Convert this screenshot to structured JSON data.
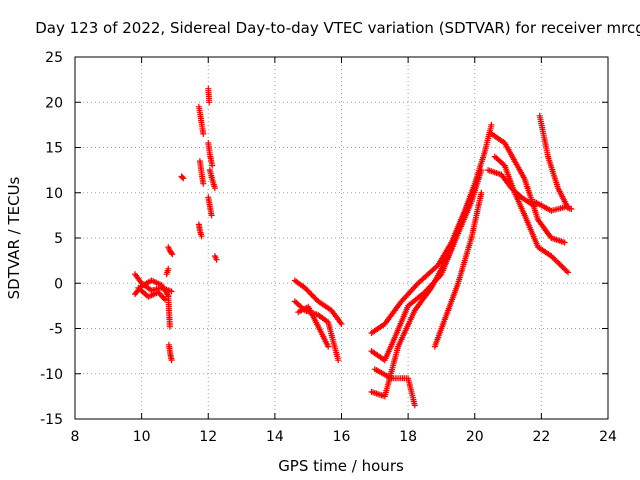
{
  "chart_data": {
    "type": "scatter",
    "title": "Day 123 of 2022, Sidereal Day-to-day VTEC variation (SDTVAR) for receiver mrcg",
    "xlabel": "GPS time / hours",
    "ylabel": "SDTVAR / TECUs",
    "xlim": [
      8,
      24
    ],
    "ylim": [
      -15,
      25
    ],
    "xticks": [
      "8",
      "10",
      "12",
      "14",
      "16",
      "18",
      "20",
      "22",
      "24"
    ],
    "yticks": [
      "25",
      "20",
      "15",
      "10",
      "5",
      "0",
      "-5",
      "-10",
      "-15"
    ],
    "grid": true,
    "marker": "plus",
    "marker_color": "#ff0000",
    "segments": [
      {
        "name": "cluster-10h-a",
        "points": [
          [
            9.8,
            1.0
          ],
          [
            10.0,
            0.0
          ],
          [
            10.3,
            -0.8
          ],
          [
            10.6,
            -0.5
          ],
          [
            10.9,
            -0.9
          ]
        ]
      },
      {
        "name": "cluster-10h-b",
        "points": [
          [
            9.8,
            -1.2
          ],
          [
            10.0,
            -0.3
          ],
          [
            10.3,
            0.3
          ],
          [
            10.6,
            -0.2
          ],
          [
            10.8,
            -1.4
          ]
        ]
      },
      {
        "name": "cluster-10h-c",
        "points": [
          [
            9.9,
            -0.5
          ],
          [
            10.2,
            -1.5
          ],
          [
            10.5,
            -1.0
          ],
          [
            10.7,
            -1.8
          ]
        ]
      },
      {
        "name": "arc-10.8-a",
        "points": [
          [
            10.8,
            -1.5
          ],
          [
            10.82,
            -3.0
          ],
          [
            10.85,
            -4.8
          ]
        ]
      },
      {
        "name": "arc-10.8-b",
        "points": [
          [
            10.82,
            -6.8
          ],
          [
            10.86,
            -7.8
          ],
          [
            10.9,
            -8.5
          ]
        ]
      },
      {
        "name": "arc-10.8-c",
        "points": [
          [
            10.8,
            4.0
          ],
          [
            10.85,
            3.6
          ],
          [
            10.92,
            3.2
          ]
        ]
      },
      {
        "name": "arc-10.8-d",
        "points": [
          [
            10.75,
            1.0
          ],
          [
            10.8,
            1.6
          ]
        ]
      },
      {
        "name": "arc-11.2",
        "points": [
          [
            11.2,
            11.8
          ],
          [
            11.25,
            11.6
          ]
        ]
      },
      {
        "name": "arc-11.7-a",
        "points": [
          [
            11.72,
            19.5
          ],
          [
            11.78,
            18.2
          ],
          [
            11.85,
            16.5
          ]
        ]
      },
      {
        "name": "arc-11.7-b",
        "points": [
          [
            11.75,
            13.5
          ],
          [
            11.8,
            12.2
          ],
          [
            11.85,
            11.0
          ]
        ]
      },
      {
        "name": "arc-11.7-c",
        "points": [
          [
            11.72,
            6.5
          ],
          [
            11.75,
            5.8
          ],
          [
            11.8,
            5.2
          ]
        ]
      },
      {
        "name": "arc-12-a",
        "points": [
          [
            12.0,
            21.5
          ],
          [
            12.03,
            20.0
          ]
        ]
      },
      {
        "name": "arc-12-b",
        "points": [
          [
            12.0,
            15.5
          ],
          [
            12.05,
            14.2
          ],
          [
            12.12,
            13.0
          ]
        ]
      },
      {
        "name": "arc-12-c",
        "points": [
          [
            12.05,
            12.5
          ],
          [
            12.12,
            11.5
          ],
          [
            12.2,
            10.5
          ]
        ]
      },
      {
        "name": "arc-12-d",
        "points": [
          [
            12.0,
            9.5
          ],
          [
            12.05,
            8.5
          ],
          [
            12.1,
            7.5
          ]
        ]
      },
      {
        "name": "arc-12-e",
        "points": [
          [
            12.2,
            3.0
          ],
          [
            12.25,
            2.6
          ]
        ]
      },
      {
        "name": "arc-14.6-a",
        "points": [
          [
            14.6,
            0.3
          ],
          [
            14.9,
            -0.5
          ],
          [
            15.3,
            -2.0
          ],
          [
            15.7,
            -3.0
          ],
          [
            16.0,
            -4.5
          ]
        ]
      },
      {
        "name": "arc-14.6-b",
        "points": [
          [
            14.6,
            -2.0
          ],
          [
            14.9,
            -3.0
          ],
          [
            15.3,
            -3.5
          ],
          [
            15.6,
            -4.3
          ],
          [
            15.9,
            -8.5
          ]
        ]
      },
      {
        "name": "arc-14.6-c",
        "points": [
          [
            14.7,
            -3.2
          ],
          [
            15.0,
            -2.6
          ],
          [
            15.4,
            -5.5
          ],
          [
            15.6,
            -7.0
          ]
        ]
      },
      {
        "name": "rise-17-a",
        "points": [
          [
            16.9,
            -5.5
          ],
          [
            17.3,
            -4.5
          ],
          [
            17.8,
            -2.0
          ],
          [
            18.3,
            0.0
          ],
          [
            18.9,
            2.0
          ],
          [
            19.3,
            4.5
          ],
          [
            19.7,
            8.0
          ],
          [
            20.0,
            11.0
          ],
          [
            20.3,
            14.5
          ],
          [
            20.5,
            17.5
          ]
        ]
      },
      {
        "name": "rise-17-b",
        "points": [
          [
            16.9,
            -7.5
          ],
          [
            17.3,
            -8.5
          ],
          [
            17.6,
            -6.0
          ],
          [
            18.0,
            -2.5
          ],
          [
            18.5,
            -1.0
          ],
          [
            19.0,
            1.0
          ],
          [
            19.5,
            5.5
          ],
          [
            19.9,
            9.0
          ],
          [
            20.2,
            12.5
          ]
        ]
      },
      {
        "name": "rise-17-c",
        "points": [
          [
            16.9,
            -12.0
          ],
          [
            17.3,
            -12.5
          ],
          [
            17.7,
            -7.0
          ],
          [
            18.2,
            -3.0
          ],
          [
            18.7,
            -0.5
          ],
          [
            19.2,
            3.0
          ],
          [
            19.6,
            7.0
          ],
          [
            20.0,
            10.5
          ]
        ]
      },
      {
        "name": "rise-17-d",
        "points": [
          [
            17.0,
            -9.5
          ],
          [
            17.5,
            -10.5
          ],
          [
            18.0,
            -10.5
          ],
          [
            18.2,
            -13.5
          ]
        ]
      },
      {
        "name": "rise-18.8",
        "points": [
          [
            18.8,
            -7.0
          ],
          [
            19.1,
            -4.0
          ],
          [
            19.5,
            0.0
          ],
          [
            19.9,
            5.0
          ],
          [
            20.2,
            10.0
          ]
        ]
      },
      {
        "name": "fall-20.5-a",
        "points": [
          [
            20.5,
            16.5
          ],
          [
            20.9,
            15.5
          ],
          [
            21.2,
            13.5
          ],
          [
            21.5,
            11.5
          ],
          [
            21.9,
            7.0
          ],
          [
            22.3,
            5.0
          ],
          [
            22.7,
            4.5
          ]
        ]
      },
      {
        "name": "fall-20.5-b",
        "points": [
          [
            20.6,
            14.0
          ],
          [
            20.9,
            13.0
          ],
          [
            21.2,
            10.0
          ],
          [
            21.5,
            7.5
          ],
          [
            21.9,
            4.0
          ],
          [
            22.3,
            3.0
          ],
          [
            22.8,
            1.2
          ]
        ]
      },
      {
        "name": "fall-20.5-c",
        "points": [
          [
            20.4,
            12.5
          ],
          [
            20.8,
            12.0
          ],
          [
            21.1,
            10.5
          ],
          [
            21.4,
            9.5
          ],
          [
            21.8,
            8.5
          ]
        ]
      },
      {
        "name": "arc-22",
        "points": [
          [
            21.95,
            18.5
          ],
          [
            22.2,
            14.0
          ],
          [
            22.5,
            10.5
          ],
          [
            22.8,
            8.3
          ],
          [
            22.9,
            8.2
          ]
        ]
      },
      {
        "name": "arc-21.8",
        "points": [
          [
            21.8,
            9.0
          ],
          [
            22.3,
            8.0
          ],
          [
            22.8,
            8.5
          ]
        ]
      }
    ]
  }
}
